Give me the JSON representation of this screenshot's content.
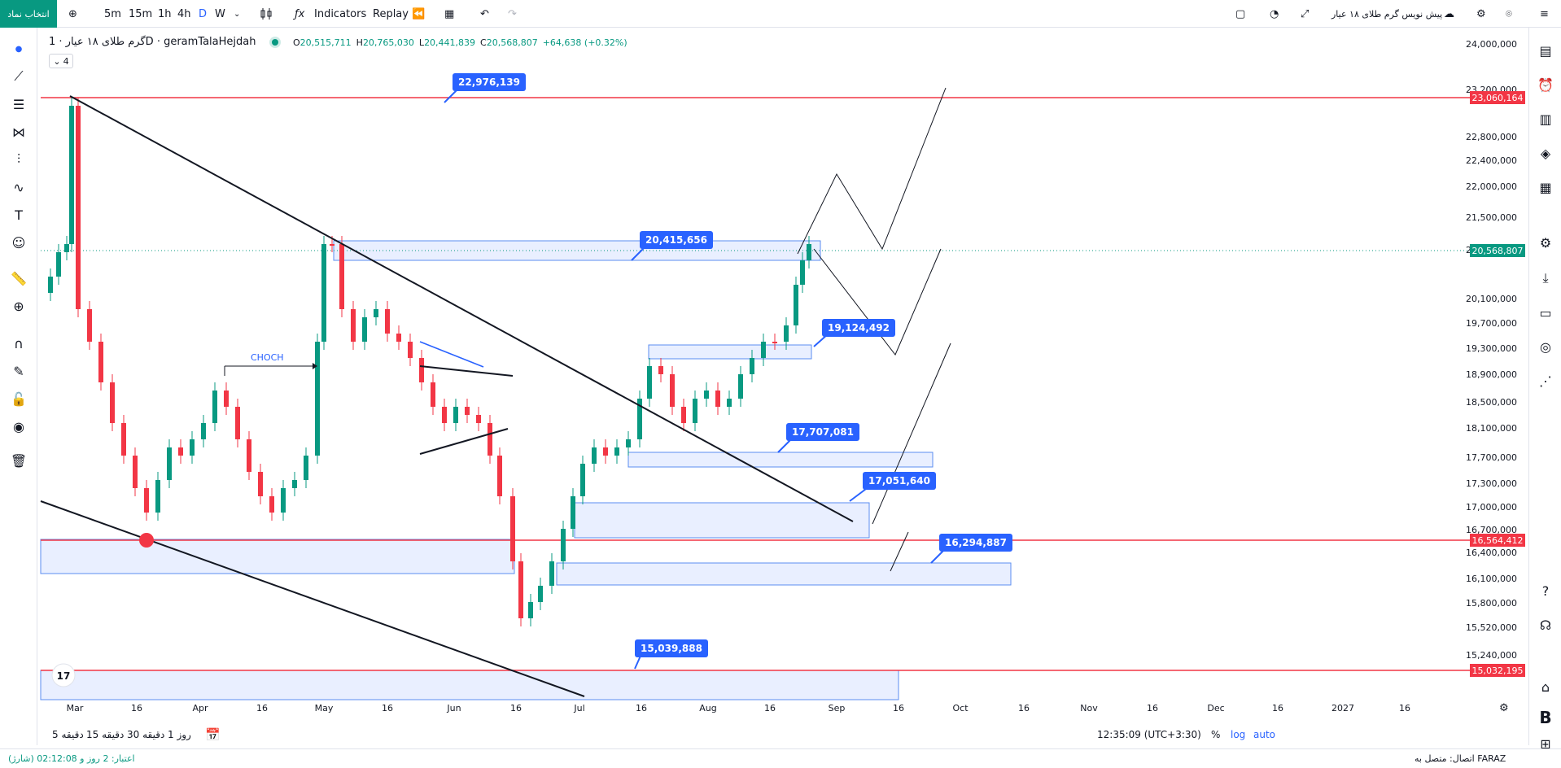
{
  "topbar": {
    "symbol_button": "انتخاب نماد",
    "intervals": [
      "5m",
      "15m",
      "1h",
      "4h",
      "D",
      "W"
    ],
    "active_interval": "D",
    "indicators_label": "Indicators",
    "replay_label": "Replay",
    "title_rtl": "پیش نویس گرم طلای ۱۸ عیار"
  },
  "legend": {
    "symbol_name": "گرم طلای ۱۸ عیار · 1D · geramTalaHejdah",
    "open_key": "O",
    "open": "20,515,711",
    "high_key": "H",
    "high": "20,765,030",
    "low_key": "L",
    "low": "20,441,839",
    "close_key": "C",
    "close": "20,568,807",
    "change": "+64,638 (+0.32%)",
    "collapse_count": "4"
  },
  "chart_data": {
    "type": "candlestick",
    "x_ticks": [
      "Mar",
      "16",
      "Apr",
      "16",
      "May",
      "16",
      "Jun",
      "16",
      "Jul",
      "16",
      "Aug",
      "16",
      "Sep",
      "16",
      "Oct",
      "16",
      "Nov",
      "16",
      "Dec",
      "16",
      "2027",
      "16"
    ],
    "y_ticks": [
      "24,000,000",
      "23,200,000",
      "22,800,000",
      "22,400,000",
      "22,000,000",
      "21,500,000",
      "21,000,000",
      "20,100,000",
      "19,700,000",
      "19,300,000",
      "18,900,000",
      "18,500,000",
      "18,100,000",
      "17,700,000",
      "17,300,000",
      "17,000,000",
      "16,700,000",
      "16,400,000",
      "16,100,000",
      "15,800,000",
      "15,520,000",
      "15,240,000"
    ],
    "price_labels": [
      {
        "text": "23,060,164",
        "color": "#f23645"
      },
      {
        "text": "20,568,807",
        "color": "#089981"
      },
      {
        "text": "16,564,412",
        "color": "#f23645"
      },
      {
        "text": "15,032,195",
        "color": "#f23645"
      }
    ],
    "callouts": [
      "22,976,139",
      "20,415,656",
      "19,124,492",
      "17,707,081",
      "17,051,640",
      "16,294,887",
      "15,039,888"
    ],
    "annotation": "CHOCH",
    "up_color": "#089981",
    "down_color": "#f23645"
  },
  "bottom": {
    "ranges": [
      "5 دقیقه",
      "15 دقیقه",
      "30 دقیقه",
      "1 روز"
    ],
    "clock": "12:35:09 (UTC+3:30)",
    "pct": "%",
    "log": "log",
    "auto": "auto"
  },
  "status": {
    "left": "اعتبار: 2 روز و 02:12:08 (شارژ)",
    "right": "اتصال: متصل به FARAZ"
  },
  "icons": [
    "plus-icon",
    "candles-icon",
    "indicators-icon",
    "replay-icon",
    "layout-icon",
    "undo-icon",
    "redo-icon",
    "snapshot-icon",
    "settings-icon",
    "cloud-icon",
    "fullscreen-icon",
    "alert-icon",
    "crosshair-icon",
    "trendline-icon",
    "fib-icon",
    "pattern-icon",
    "prediction-icon",
    "text-icon",
    "emoji-icon",
    "ruler-icon",
    "zoom-icon",
    "magnet-icon",
    "lock-icon",
    "eye-icon",
    "trash-icon"
  ]
}
